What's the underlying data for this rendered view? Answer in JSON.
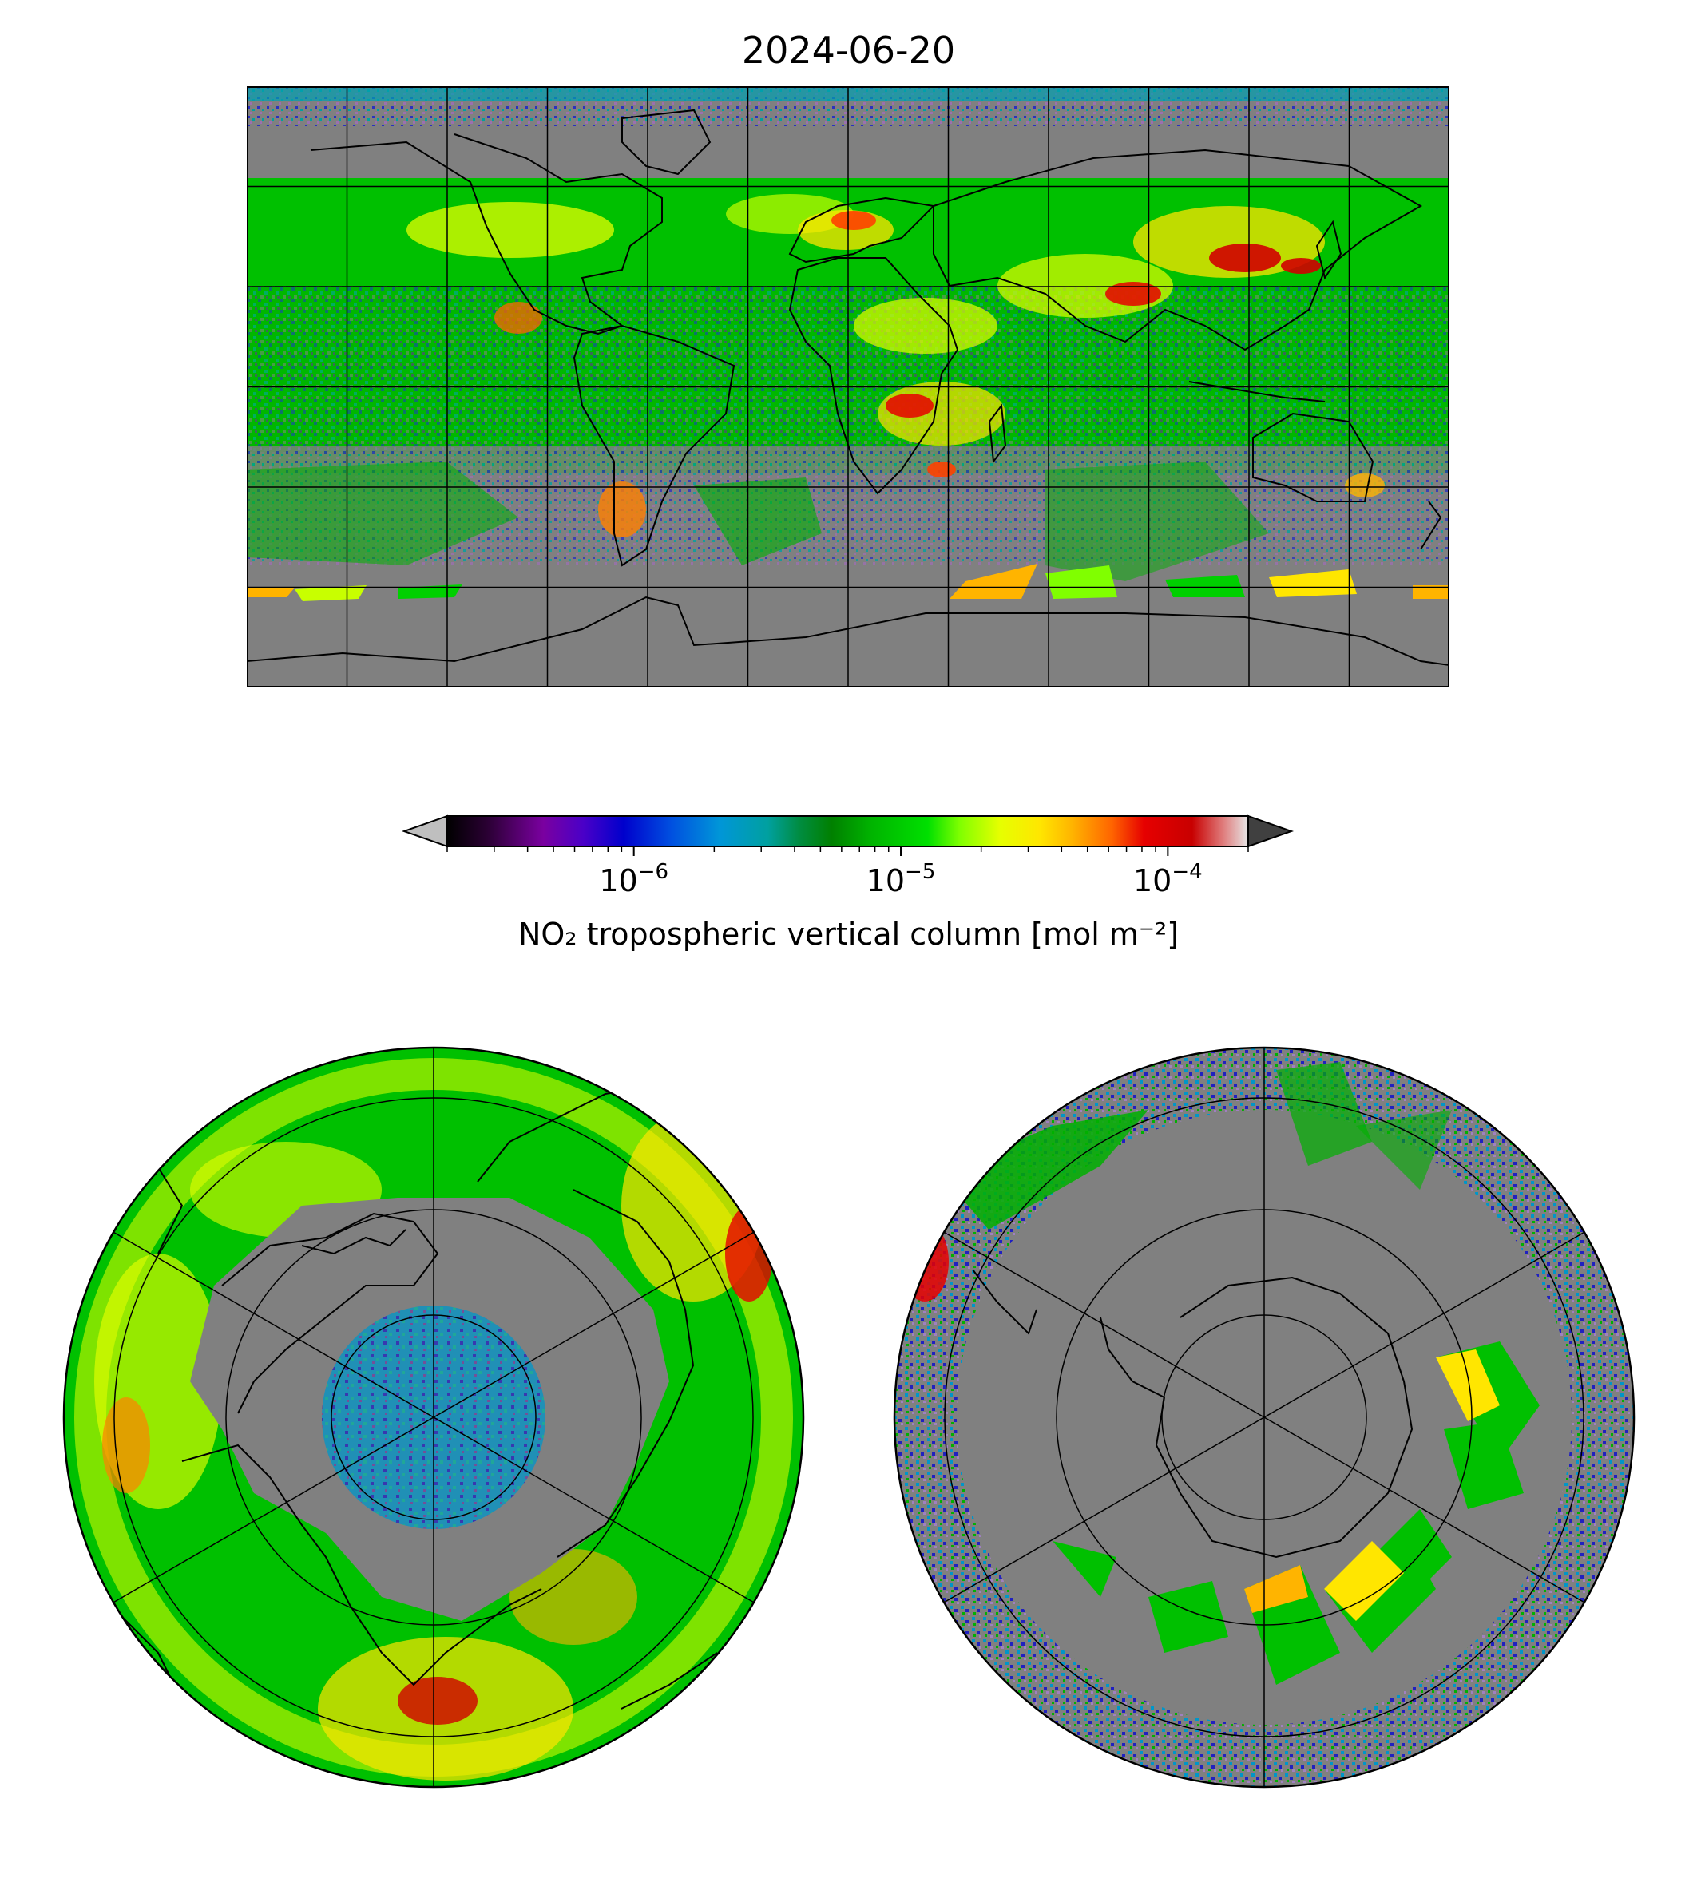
{
  "title": "2024-06-20",
  "colorbar": {
    "label_base": "NO₂ tropospheric vertical column [mol m⁻²]",
    "ticks": [
      {
        "base": "10",
        "exp": "−6",
        "value": 1e-06
      },
      {
        "base": "10",
        "exp": "−5",
        "value": 1e-05
      },
      {
        "base": "10",
        "exp": "−4",
        "value": 0.0001
      }
    ],
    "range": [
      2e-07,
      0.0002
    ],
    "scale": "log",
    "extend": "both",
    "colors": [
      "#000000",
      "#2a0033",
      "#7a00a0",
      "#4a00c8",
      "#0000cc",
      "#0050e0",
      "#0096d8",
      "#00a0a0",
      "#008c40",
      "#008000",
      "#00b400",
      "#00e000",
      "#80ff00",
      "#e6ff00",
      "#ffe600",
      "#ffb400",
      "#ff6400",
      "#e60000",
      "#c80000",
      "#e08080",
      "#e6e6e6"
    ]
  },
  "colors": {
    "no_data": "#808080",
    "coastline": "#000000",
    "grid": "#000000"
  }
}
